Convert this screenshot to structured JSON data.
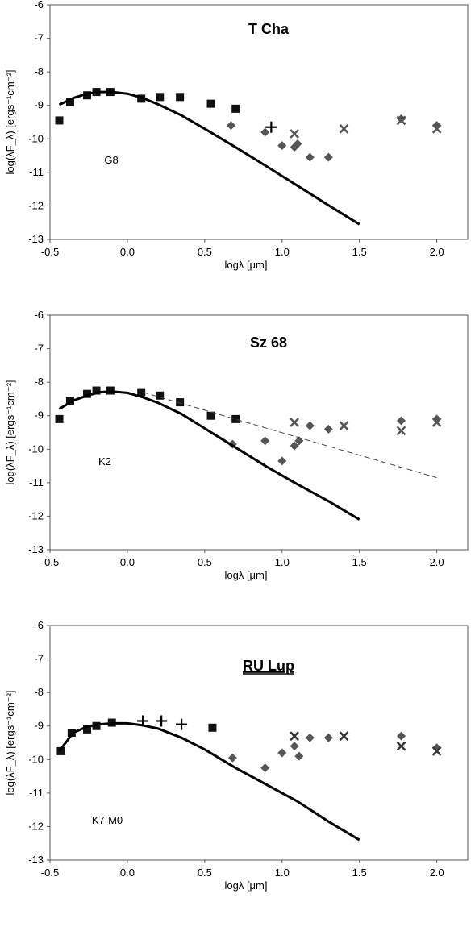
{
  "chart_data": [
    {
      "type": "scatter",
      "title": "T Cha",
      "title_underlined": false,
      "annotation": "G8",
      "xlabel": "logλ [μm]",
      "ylabel": "log(λF_λ) [ergs⁻¹cm⁻²]",
      "xlim": [
        -0.5,
        2.2
      ],
      "ylim": [
        -13,
        -6
      ],
      "xticks": [
        "-0.5",
        "0.0",
        "0.5",
        "1.0",
        "1.5",
        "2.0"
      ],
      "xtick_values": [
        -0.5,
        0.0,
        0.5,
        1.0,
        1.5,
        2.0
      ],
      "yticks": [
        "-6",
        "-7",
        "-8",
        "-9",
        "-10",
        "-11",
        "-12",
        "-13"
      ],
      "ytick_values": [
        -6,
        -7,
        -8,
        -9,
        -10,
        -11,
        -12,
        -13
      ],
      "series": [
        {
          "marker": "square",
          "color": "#111111",
          "x": [
            -0.44,
            -0.37,
            -0.26,
            -0.2,
            -0.11,
            0.09,
            0.21,
            0.34,
            0.54,
            0.7
          ],
          "y": [
            -9.45,
            -8.9,
            -8.7,
            -8.6,
            -8.6,
            -8.8,
            -8.75,
            -8.75,
            -8.95,
            -9.1
          ]
        },
        {
          "marker": "diamond",
          "color": "#555555",
          "x": [
            0.67,
            0.89,
            1.0,
            1.08,
            1.1,
            1.18,
            1.3,
            1.77,
            2.0
          ],
          "y": [
            -9.6,
            -9.8,
            -10.2,
            -10.25,
            -10.15,
            -10.55,
            -10.55,
            -9.4,
            -9.6
          ]
        },
        {
          "marker": "cross",
          "color": "#555555",
          "x": [
            1.08,
            1.4,
            1.77,
            2.0
          ],
          "y": [
            -9.85,
            -9.7,
            -9.45,
            -9.7
          ]
        },
        {
          "marker": "plus",
          "color": "#000000",
          "x": [
            0.93
          ],
          "y": [
            -9.65
          ]
        },
        {
          "marker": "line",
          "color": "#000000",
          "x": [
            -0.44,
            -0.35,
            -0.26,
            -0.18,
            -0.1,
            0.0,
            0.1,
            0.2,
            0.35,
            0.5,
            0.7,
            0.9,
            1.1,
            1.3,
            1.5
          ],
          "y": [
            -8.98,
            -8.78,
            -8.65,
            -8.6,
            -8.6,
            -8.65,
            -8.78,
            -8.97,
            -9.3,
            -9.7,
            -10.25,
            -10.82,
            -11.4,
            -11.98,
            -12.55
          ]
        }
      ]
    },
    {
      "type": "scatter",
      "title": "Sz 68",
      "title_underlined": false,
      "annotation": "K2",
      "xlabel": "logλ [μm]",
      "ylabel": "log(λF_λ) [ergs⁻¹cm⁻²]",
      "xlim": [
        -0.5,
        2.2
      ],
      "ylim": [
        -13,
        -6
      ],
      "xticks": [
        "-0.5",
        "0.0",
        "0.5",
        "1.0",
        "1.5",
        "2.0"
      ],
      "xtick_values": [
        -0.5,
        0.0,
        0.5,
        1.0,
        1.5,
        2.0
      ],
      "yticks": [
        "-6",
        "-7",
        "-8",
        "-9",
        "-10",
        "-11",
        "-12",
        "-13"
      ],
      "ytick_values": [
        -6,
        -7,
        -8,
        -9,
        -10,
        -11,
        -12,
        -13
      ],
      "series": [
        {
          "marker": "square",
          "color": "#111111",
          "x": [
            -0.44,
            -0.37,
            -0.26,
            -0.2,
            -0.11,
            0.09,
            0.21,
            0.34,
            0.54,
            0.7
          ],
          "y": [
            -9.1,
            -8.55,
            -8.35,
            -8.25,
            -8.25,
            -8.3,
            -8.4,
            -8.6,
            -9.0,
            -9.1
          ]
        },
        {
          "marker": "diamond",
          "color": "#555555",
          "x": [
            0.68,
            0.89,
            1.0,
            1.08,
            1.11,
            1.18,
            1.3,
            1.77,
            2.0
          ],
          "y": [
            -9.85,
            -9.75,
            -10.35,
            -9.9,
            -9.75,
            -9.3,
            -9.4,
            -9.15,
            -9.1
          ]
        },
        {
          "marker": "cross",
          "color": "#555555",
          "x": [
            1.08,
            1.4,
            1.77,
            2.0
          ],
          "y": [
            -9.2,
            -9.3,
            -9.45,
            -9.2
          ]
        },
        {
          "marker": "dashed",
          "color": "#444444",
          "x": [
            0.1,
            2.0
          ],
          "y": [
            -8.3,
            -10.85
          ]
        },
        {
          "marker": "line",
          "color": "#000000",
          "x": [
            -0.44,
            -0.35,
            -0.26,
            -0.18,
            -0.1,
            0.0,
            0.1,
            0.2,
            0.35,
            0.5,
            0.7,
            0.9,
            1.1,
            1.3,
            1.5
          ],
          "y": [
            -8.8,
            -8.55,
            -8.4,
            -8.3,
            -8.28,
            -8.32,
            -8.45,
            -8.62,
            -8.95,
            -9.38,
            -9.95,
            -10.52,
            -11.05,
            -11.55,
            -12.1
          ]
        }
      ]
    },
    {
      "type": "scatter",
      "title": "RU Lup",
      "title_underlined": true,
      "annotation": "K7-M0",
      "xlabel": "logλ [μm]",
      "ylabel": "log(λF_λ) [ergs⁻¹cm⁻²]",
      "xlim": [
        -0.5,
        2.2
      ],
      "ylim": [
        -13,
        -6
      ],
      "xticks": [
        "-0.5",
        "0.0",
        "0.5",
        "1.0",
        "1.5",
        "2.0"
      ],
      "xtick_values": [
        -0.5,
        0.0,
        0.5,
        1.0,
        1.5,
        2.0
      ],
      "yticks": [
        "-6",
        "-7",
        "-8",
        "-9",
        "-10",
        "-11",
        "-12",
        "-13"
      ],
      "ytick_values": [
        -6,
        -7,
        -8,
        -9,
        -10,
        -11,
        -12,
        -13
      ],
      "series": [
        {
          "marker": "square",
          "color": "#111111",
          "x": [
            -0.43,
            -0.36,
            -0.26,
            -0.2,
            -0.1,
            0.55
          ],
          "y": [
            -9.75,
            -9.2,
            -9.1,
            -9.0,
            -8.9,
            -9.05
          ]
        },
        {
          "marker": "plus",
          "color": "#000000",
          "x": [
            0.1,
            0.22,
            0.35
          ],
          "y": [
            -8.85,
            -8.85,
            -8.95
          ]
        },
        {
          "marker": "diamond",
          "color": "#555555",
          "x": [
            0.68,
            0.89,
            1.0,
            1.08,
            1.11,
            1.18,
            1.3,
            1.77,
            2.0
          ],
          "y": [
            -9.95,
            -10.25,
            -9.8,
            -9.6,
            -9.9,
            -9.35,
            -9.35,
            -9.3,
            -9.65
          ]
        },
        {
          "marker": "cross",
          "color": "#333333",
          "x": [
            1.08,
            1.4,
            1.77,
            2.0
          ],
          "y": [
            -9.3,
            -9.3,
            -9.6,
            -9.75
          ]
        },
        {
          "marker": "line",
          "color": "#000000",
          "x": [
            -0.44,
            -0.35,
            -0.26,
            -0.18,
            -0.1,
            0.0,
            0.1,
            0.2,
            0.35,
            0.5,
            0.7,
            0.9,
            1.1,
            1.3,
            1.5
          ],
          "y": [
            -9.75,
            -9.2,
            -9.02,
            -8.95,
            -8.92,
            -8.92,
            -8.98,
            -9.08,
            -9.35,
            -9.7,
            -10.25,
            -10.75,
            -11.25,
            -11.85,
            -12.4
          ]
        }
      ]
    }
  ]
}
